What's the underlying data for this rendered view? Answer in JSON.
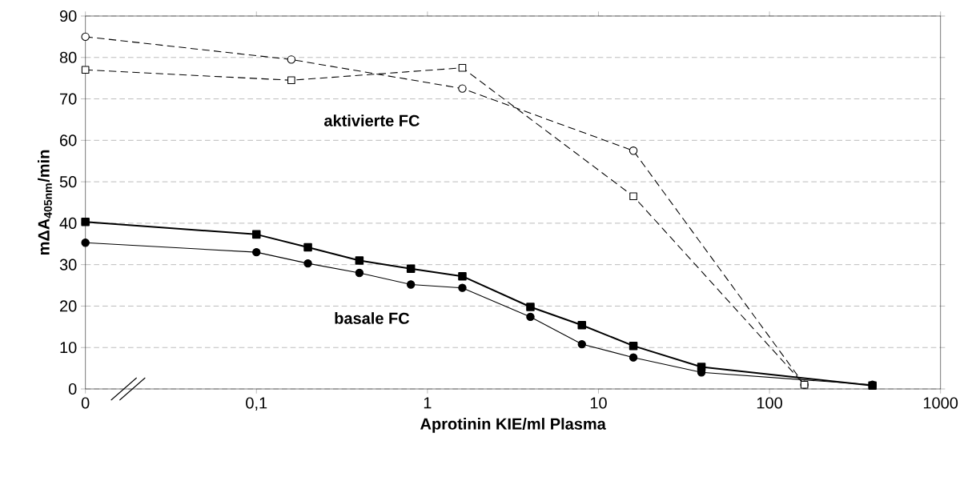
{
  "chart_data": {
    "type": "line",
    "xlabel": "Aprotinin KIE/ml Plasma",
    "ylabel": "mΔA$_{405nm}$/min",
    "log": "x",
    "grid": "y",
    "xlim": [
      0.01,
      1000
    ],
    "ylim": [
      0,
      90
    ],
    "xticks": [
      {
        "value": 0.01,
        "label": "0"
      },
      {
        "value": 0.1,
        "label": "0,1"
      },
      1,
      10,
      100,
      1000
    ],
    "yticks": [
      0,
      10,
      20,
      30,
      40,
      50,
      60,
      70,
      80,
      90
    ],
    "annotations": [
      "aktivierte FC",
      "basale FC"
    ],
    "series": [
      {
        "color": "#000000",
        "marker": "circle",
        "line_style": "dashed",
        "x": [
          0.01,
          0.16,
          1.6,
          16,
          160
        ],
        "values": [
          85,
          79.5,
          72.5,
          57.5,
          1
        ]
      },
      {
        "color": "#000000",
        "marker": "square",
        "line_style": "dashed",
        "x": [
          0.01,
          0.16,
          1.6,
          16,
          160
        ],
        "values": [
          77,
          74.5,
          77.5,
          46.5,
          1
        ]
      },
      {
        "color": "#000000",
        "marker": "square",
        "line_style": "solid",
        "x": [
          0.01,
          0.1,
          0.2,
          0.4,
          0.8,
          1.6,
          4,
          8,
          16,
          40,
          400
        ],
        "values": [
          40.3,
          37.3,
          34.2,
          31,
          29,
          27.2,
          19.8,
          15.4,
          10.4,
          5.3,
          0.8
        ]
      },
      {
        "color": "#000000",
        "marker": "circle",
        "line_style": "solid",
        "x": [
          0.01,
          0.1,
          0.2,
          0.4,
          0.8,
          1.6,
          4,
          8,
          16,
          40,
          400
        ],
        "values": [
          35.3,
          33,
          30.3,
          28,
          25.2,
          24.4,
          17.4,
          10.8,
          7.6,
          4,
          1
        ]
      }
    ]
  }
}
